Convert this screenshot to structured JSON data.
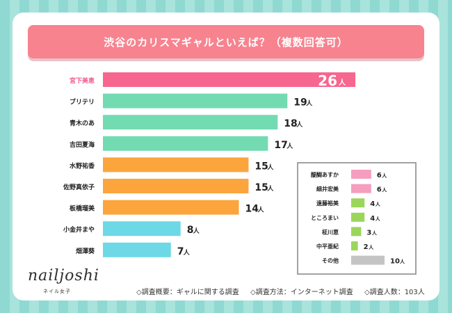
{
  "title": "渋谷のカリスマギャルといえば？（複数回答可）",
  "colors": {
    "highlight": "#f7668e",
    "green": "#72dbb2",
    "orange": "#fba53c",
    "cyan": "#6dd8e6",
    "pink": "#f59ec0",
    "lime": "#9bd65a",
    "gray": "#c4c4c4",
    "highlight_label": "#f25d8c"
  },
  "chart_data": [
    {
      "type": "bar",
      "orientation": "horizontal",
      "categories": [
        "宮下美恵",
        "ブリテリ",
        "青木のあ",
        "吉田夏海",
        "水野祐香",
        "佐野真依子",
        "板橋瑠美",
        "小金井まや",
        "畑澤葵"
      ],
      "values": [
        26,
        19,
        18,
        17,
        15,
        15,
        14,
        8,
        7
      ],
      "value_unit": "人",
      "bar_colors": [
        "highlight",
        "green",
        "green",
        "green",
        "orange",
        "orange",
        "orange",
        "cyan",
        "cyan"
      ]
    },
    {
      "type": "bar",
      "orientation": "horizontal",
      "categories": [
        "醍醐あすか",
        "細井宏美",
        "遠藤裕美",
        "ところまい",
        "柾川恵",
        "中平亜紀",
        "その他"
      ],
      "values": [
        6,
        6,
        4,
        4,
        3,
        2,
        10
      ],
      "value_unit": "人",
      "bar_colors": [
        "pink",
        "pink",
        "lime",
        "lime",
        "lime",
        "lime",
        "gray"
      ]
    }
  ],
  "logo": {
    "name": "nailjoshi",
    "sub": "ネイル女子"
  },
  "footnotes": [
    "◇調査概要：ギャルに関する調査",
    "◇調査方法：インターネット調査",
    "◇調査人数：103人"
  ]
}
